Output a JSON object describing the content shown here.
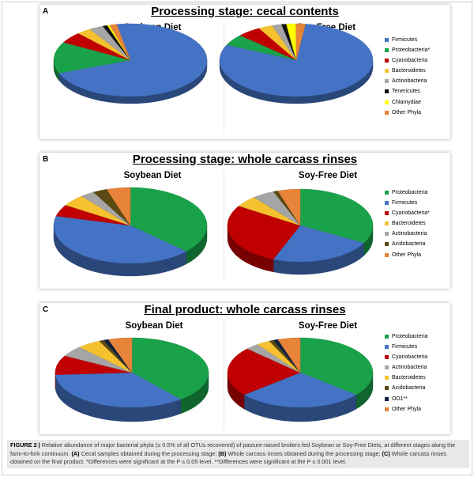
{
  "figure": {
    "caption_label": "FIGURE 2 |",
    "caption_text": "Relative abundance of major bacterial phyla (≥ 0.5% of all OTUs recovered) of pasture-raised broilers fed Soybean or Soy-Free Diets, at different stages along the farm-to-fork continuum.",
    "caption_a_label": "(A)",
    "caption_a": "Cecal samples obtained during the processing stage;",
    "caption_b_label": "(B)",
    "caption_b": "Whole carcass rinses obtained during the processing stage;",
    "caption_c_label": "(C)",
    "caption_c": "Whole carcass rinses obtained on the final product. *Differences were significant at the P ≤ 0.05 level. **Differences were significant at the P ≤ 0.001 level."
  },
  "colors": {
    "Firmicutes": "#4472c4",
    "Proteobacteria": "#1aa24a",
    "Cyanobacteria": "#c00000",
    "Bacteroidetes": "#f5c12e",
    "Actinobacteria": "#a5a5a5",
    "Tenericutes": "#111111",
    "Chlamydiae": "#ffff00",
    "Acidobacteria": "#5b4a13",
    "OD1": "#0d1f3f",
    "Other Phyla": "#e8833a"
  },
  "chart_data": [
    {
      "type": "pie",
      "panel": "A",
      "title": "Processing stage: cecal contents",
      "legend": [
        "Firmicutes",
        "Proteobacteria*",
        "Cyanobacteria",
        "Bacteroidetes",
        "Actinobacteria",
        "Tenericutes",
        "Chlamydiae",
        "Other Phyla"
      ],
      "legend_keys": [
        "Firmicutes",
        "Proteobacteria",
        "Cyanobacteria",
        "Bacteroidetes",
        "Actinobacteria",
        "Tenericutes",
        "Chlamydiae",
        "Other Phyla"
      ],
      "legend_placement": "right",
      "pies": [
        {
          "title": "Soybean Diet",
          "slices": [
            {
              "phylum": "Firmicutes",
              "value": 72
            },
            {
              "phylum": "Proteobacteria",
              "value": 14
            },
            {
              "phylum": "Cyanobacteria",
              "value": 5
            },
            {
              "phylum": "Bacteroidetes",
              "value": 3
            },
            {
              "phylum": "Actinobacteria",
              "value": 3
            },
            {
              "phylum": "Tenericutes",
              "value": 1
            },
            {
              "phylum": "Chlamydiae",
              "value": 0.5
            },
            {
              "phylum": "Other Phyla",
              "value": 1.5
            }
          ]
        },
        {
          "title": "Soy-Free Diet",
          "slices": [
            {
              "phylum": "Firmicutes",
              "value": 80
            },
            {
              "phylum": "Proteobacteria",
              "value": 5
            },
            {
              "phylum": "Cyanobacteria",
              "value": 5
            },
            {
              "phylum": "Bacteroidetes",
              "value": 3
            },
            {
              "phylum": "Actinobacteria",
              "value": 2
            },
            {
              "phylum": "Tenericutes",
              "value": 1
            },
            {
              "phylum": "Chlamydiae",
              "value": 2
            },
            {
              "phylum": "Other Phyla",
              "value": 2
            }
          ]
        }
      ]
    },
    {
      "type": "pie",
      "panel": "B",
      "title": "Processing stage: whole carcass rinses",
      "legend": [
        "Proteobacteria",
        "Firmicutes",
        "Cyanobacteria*",
        "Bacteroidetes",
        "Actinobacteria",
        "Acidobacteria",
        "Other Phyla"
      ],
      "legend_keys": [
        "Proteobacteria",
        "Firmicutes",
        "Cyanobacteria",
        "Bacteroidetes",
        "Actinobacteria",
        "Acidobacteria",
        "Other Phyla"
      ],
      "legend_placement": "right",
      "pies": [
        {
          "title": "Soybean Diet",
          "slices": [
            {
              "phylum": "Proteobacteria",
              "value": 37
            },
            {
              "phylum": "Firmicutes",
              "value": 42
            },
            {
              "phylum": "Cyanobacteria",
              "value": 5
            },
            {
              "phylum": "Bacteroidetes",
              "value": 5
            },
            {
              "phylum": "Actinobacteria",
              "value": 3
            },
            {
              "phylum": "Acidobacteria",
              "value": 3
            },
            {
              "phylum": "Other Phyla",
              "value": 5
            }
          ]
        },
        {
          "title": "Soy-Free Diet",
          "slices": [
            {
              "phylum": "Proteobacteria",
              "value": 33
            },
            {
              "phylum": "Firmicutes",
              "value": 23
            },
            {
              "phylum": "Cyanobacteria",
              "value": 28
            },
            {
              "phylum": "Bacteroidetes",
              "value": 5
            },
            {
              "phylum": "Actinobacteria",
              "value": 5
            },
            {
              "phylum": "Acidobacteria",
              "value": 1
            },
            {
              "phylum": "Other Phyla",
              "value": 5
            }
          ]
        }
      ]
    },
    {
      "type": "pie",
      "panel": "C",
      "title": "Final product: whole carcass rinses",
      "legend": [
        "Proteobacteria",
        "Firmicutes",
        "Cyanobacteria",
        "Actinobacteria",
        "Bacteroidetes",
        "Acidobacteria",
        "OD1**",
        "Other Phyla"
      ],
      "legend_keys": [
        "Proteobacteria",
        "Firmicutes",
        "Cyanobacteria",
        "Actinobacteria",
        "Bacteroidetes",
        "Acidobacteria",
        "OD1",
        "Other Phyla"
      ],
      "legend_placement": "right",
      "pies": [
        {
          "title": "Soybean Diet",
          "slices": [
            {
              "phylum": "Proteobacteria",
              "value": 39
            },
            {
              "phylum": "Firmicutes",
              "value": 35
            },
            {
              "phylum": "Cyanobacteria",
              "value": 9
            },
            {
              "phylum": "Actinobacteria",
              "value": 5
            },
            {
              "phylum": "Bacteroidetes",
              "value": 5
            },
            {
              "phylum": "Acidobacteria",
              "value": 1
            },
            {
              "phylum": "OD1",
              "value": 1
            },
            {
              "phylum": "Other Phyla",
              "value": 5
            }
          ]
        },
        {
          "title": "Soy-Free Diet",
          "slices": [
            {
              "phylum": "Proteobacteria",
              "value": 36
            },
            {
              "phylum": "Firmicutes",
              "value": 28
            },
            {
              "phylum": "Cyanobacteria",
              "value": 23
            },
            {
              "phylum": "Actinobacteria",
              "value": 3
            },
            {
              "phylum": "Bacteroidetes",
              "value": 3
            },
            {
              "phylum": "Acidobacteria",
              "value": 1
            },
            {
              "phylum": "OD1",
              "value": 1
            },
            {
              "phylum": "Other Phyla",
              "value": 5
            }
          ]
        }
      ]
    }
  ]
}
